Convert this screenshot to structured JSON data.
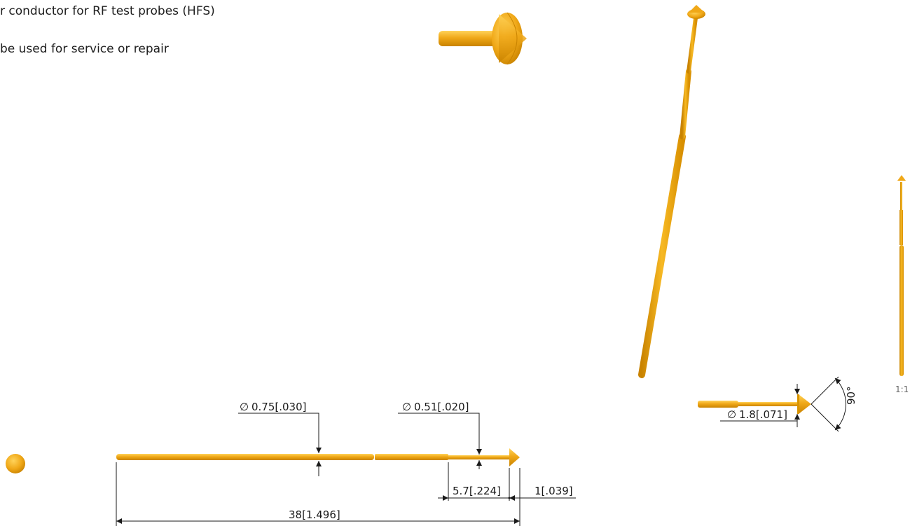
{
  "description": {
    "line1": "r conductor for RF test probes (HFS)",
    "line2": "be used for service or repair"
  },
  "dimensions": {
    "dia_shaft": "0.75[.030]",
    "dia_tip_shaft": "0.51[.020]",
    "len_tip": "5.7[.224]",
    "len_head": "1[.039]",
    "len_total": "38[1.496]",
    "dia_head": "1.8[.071]",
    "angle": "90°"
  },
  "diameter_symbol": "∅",
  "scale": "1:1",
  "colors": {
    "gold": "#F0A818",
    "gold_dark": "#C98300",
    "gold_light": "#FFD35A",
    "line": "#1a1a1a"
  }
}
